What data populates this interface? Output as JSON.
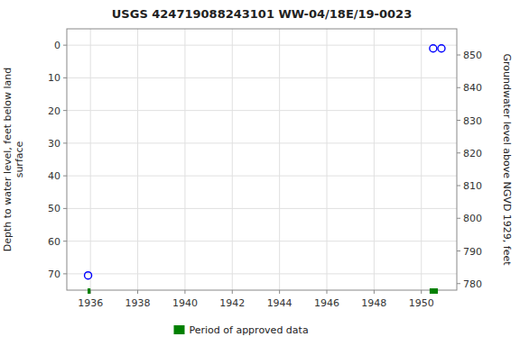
{
  "chart_data": {
    "type": "scatter",
    "title": "USGS 424719088243101 WW-04/18E/19-0023",
    "ylabel": "Depth to water level, feet below land\nsurface",
    "y2label": "Groundwater level above NGVD 1929, feet",
    "xlim": [
      1935.0,
      1951.5
    ],
    "ylim": [
      75,
      -5
    ],
    "y2lim": [
      778,
      858
    ],
    "xticks": [
      1936,
      1938,
      1940,
      1942,
      1944,
      1946,
      1948,
      1950
    ],
    "yticks": [
      0,
      10,
      20,
      30,
      40,
      50,
      60,
      70
    ],
    "y2ticks": [
      780,
      790,
      800,
      810,
      820,
      830,
      840,
      850
    ],
    "grid": true,
    "legend": "bottom",
    "series": [
      {
        "type": "scatter",
        "color": "blue",
        "marker": "open-circle",
        "x": [
          1935.9,
          1950.5,
          1950.85
        ],
        "values": [
          70.5,
          1.0,
          1.0
        ]
      },
      {
        "name": "Period of approved data",
        "type": "period",
        "color": "green",
        "x": [
          1935.88,
          1950.35
        ],
        "widths": [
          0.12,
          0.35
        ]
      }
    ]
  }
}
